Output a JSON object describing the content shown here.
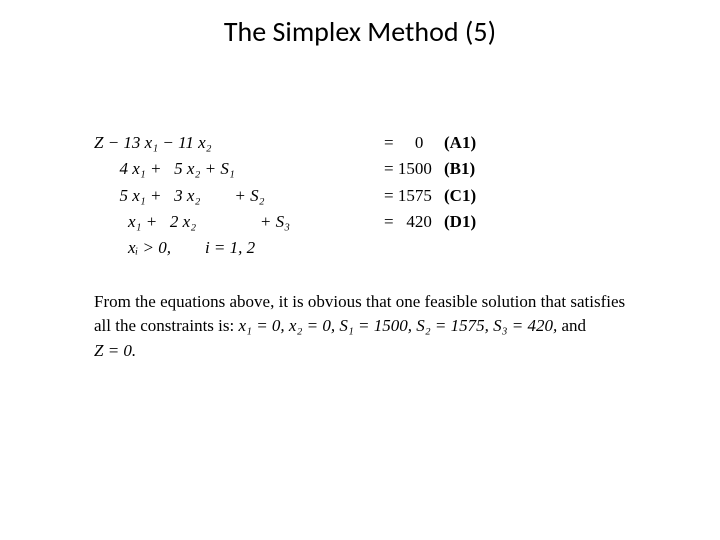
{
  "title": "The Simplex Method (5)",
  "eq": {
    "a1_lhs": "Z − 13 x₁ − 11 x₂",
    "a1_rhs": "=     0",
    "a1_tag": "(A1)",
    "b1_lhs": "      4 x₁ +   5 x₂ + S₁",
    "b1_rhs": "= 1500",
    "b1_tag": "(B1)",
    "c1_lhs": "      5 x₁ +   3 x₂        + S₂",
    "c1_rhs": "= 1575",
    "c1_tag": "(C1)",
    "d1_lhs": "        x₁ +   2 x₂               + S₃",
    "d1_rhs": "=   420",
    "d1_tag": "(D1)",
    "nonneg": "        xᵢ > 0,        i = 1, 2"
  },
  "para": {
    "line1": "From the equations above, it is obvious that one feasible solution that satisfies",
    "line2_pre": "all the constraints is: ",
    "line2_mid": "x₁ = 0, x₂ = 0, S₁ = 1500, S₂ = 1575, S₃ = 420,",
    "line2_post": " and",
    "line3": "Z = 0."
  },
  "style": {
    "bg": "#ffffff",
    "text_color": "#000000",
    "title_fontsize": 28,
    "body_fontsize": 17,
    "slide_width": 720,
    "slide_height": 540
  }
}
